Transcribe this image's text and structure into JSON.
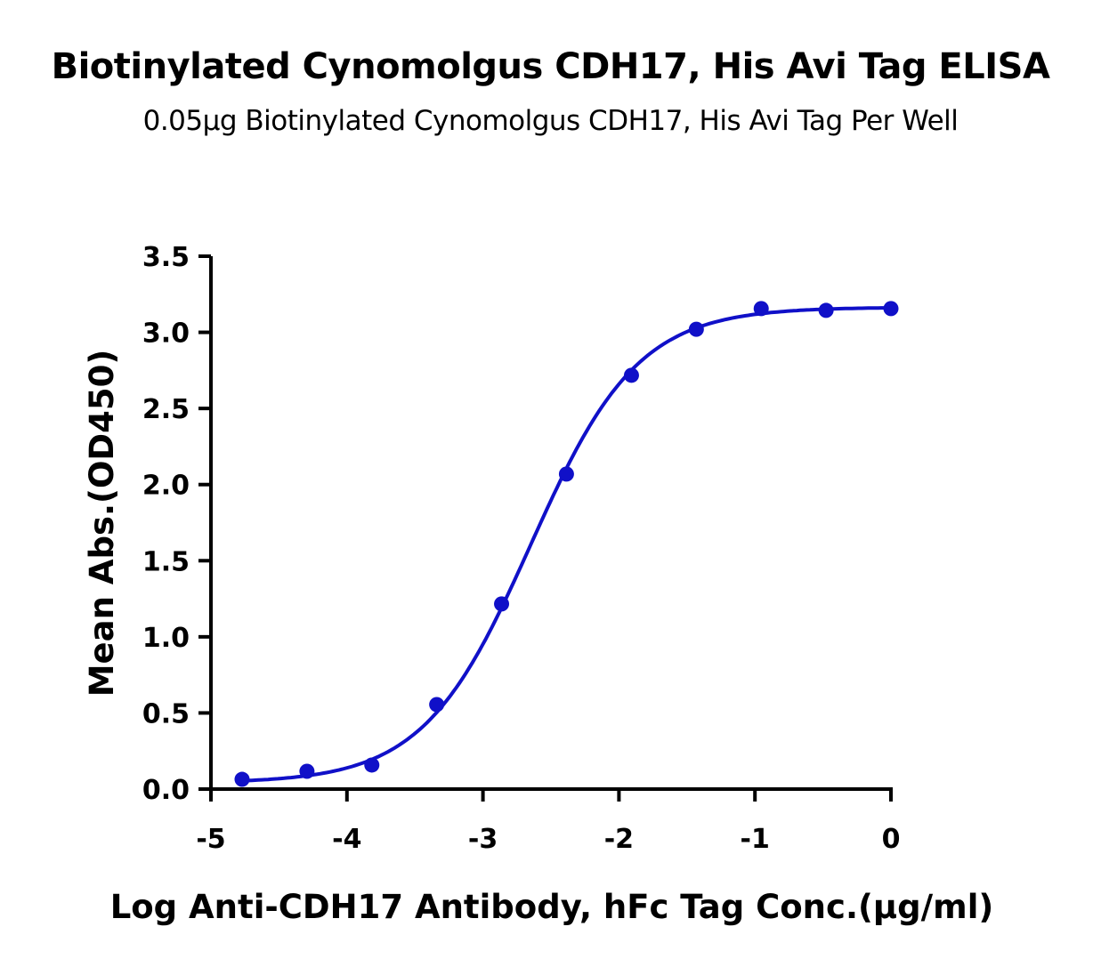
{
  "chart_data": {
    "type": "scatter",
    "title": "Biotinylated Cynomolgus CDH17, His Avi Tag ELISA",
    "subtitle": "0.05μg Biotinylated Cynomolgus CDH17, His Avi Tag Per Well",
    "xlabel": "Log Anti-CDH17 Antibody, hFc Tag Conc.(μg/ml)",
    "ylabel": "Mean Abs.(OD450)",
    "xlim": [
      -5,
      0
    ],
    "ylim": [
      0,
      3.5
    ],
    "xticks": [
      "-5",
      "-4",
      "-3",
      "-2",
      "-1",
      "0"
    ],
    "yticks": [
      "0.0",
      "0.5",
      "1.0",
      "1.5",
      "2.0",
      "2.5",
      "3.0",
      "3.5"
    ],
    "grid": false,
    "color": "#1010c8",
    "x": [
      -4.771,
      -4.294,
      -3.817,
      -3.34,
      -2.863,
      -2.386,
      -1.908,
      -1.431,
      -0.954,
      -0.477,
      0
    ],
    "y": [
      0.064,
      0.117,
      0.158,
      0.555,
      1.216,
      2.069,
      2.718,
      3.02,
      3.156,
      3.144,
      3.156
    ],
    "fit": {
      "model": "4PL",
      "bottom": 0.04,
      "top": 3.165,
      "logEC50": -2.65,
      "hill": 1.1
    }
  }
}
